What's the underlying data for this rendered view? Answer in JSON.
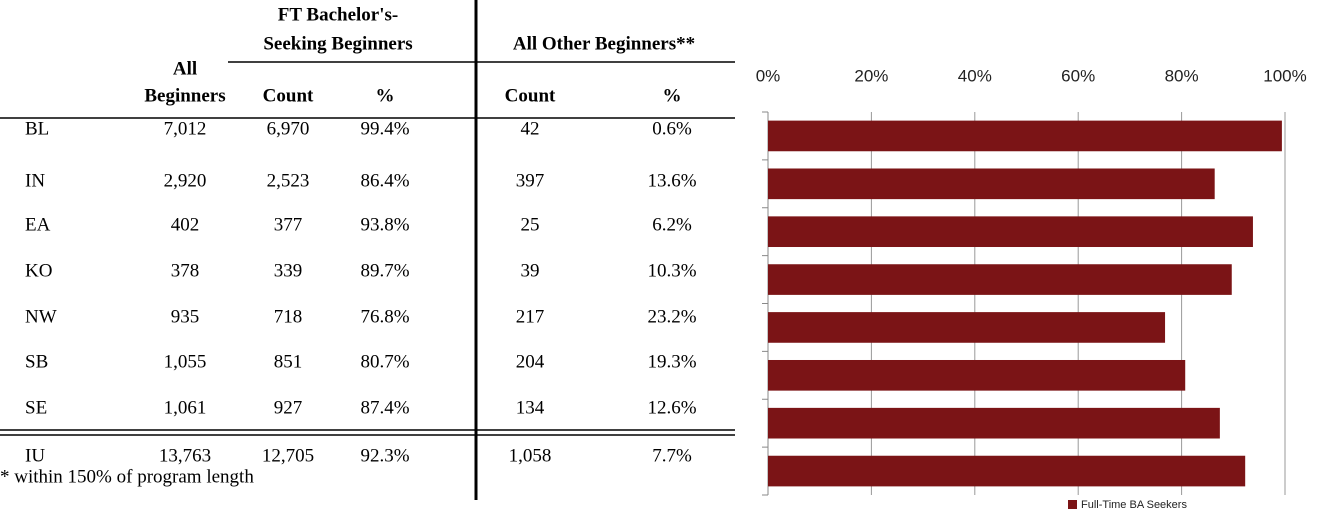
{
  "table": {
    "headers": {
      "all": [
        "All",
        "Beginners"
      ],
      "ft": [
        "FT Bachelor's-",
        "Seeking Beginners"
      ],
      "other": "All Other Beginners**",
      "sub": [
        "Count",
        "%",
        "Count",
        "%"
      ]
    },
    "rows": [
      [
        "BL",
        "7,012",
        "6,970",
        "99.4%",
        "42",
        "0.6%"
      ],
      [
        "IN",
        "2,920",
        "2,523",
        "86.4%",
        "397",
        "13.6%"
      ],
      [
        "EA",
        "402",
        "377",
        "93.8%",
        "25",
        "6.2%"
      ],
      [
        "KO",
        "378",
        "339",
        "89.7%",
        "39",
        "10.3%"
      ],
      [
        "NW",
        "935",
        "718",
        "76.8%",
        "217",
        "23.2%"
      ],
      [
        "SB",
        "1,055",
        "851",
        "80.7%",
        "204",
        "19.3%"
      ],
      [
        "SE",
        "1,061",
        "927",
        "87.4%",
        "134",
        "12.6%"
      ],
      [
        "IU",
        "13,763",
        "12,705",
        "92.3%",
        "1,058",
        "7.7%"
      ]
    ]
  },
  "notes": [
    "* within 150% of program length"
  ],
  "chart_data": {
    "type": "hbar",
    "series": [
      {
        "name": "Full-Time BA Seekers",
        "color": "#7b1416",
        "values": [
          99.4,
          86.4,
          93.8,
          89.7,
          76.8,
          80.7,
          87.4,
          92.3
        ]
      }
    ],
    "xlim": [
      0,
      100
    ],
    "xticks": [
      {
        "value": 0,
        "label": "0%"
      },
      {
        "value": 20,
        "label": "20%"
      },
      {
        "value": 40,
        "label": "40%"
      },
      {
        "value": 60,
        "label": "60%"
      },
      {
        "value": 80,
        "label": "80%"
      },
      {
        "value": 100,
        "label": "100%"
      }
    ],
    "grid": true,
    "legend": "bottom"
  }
}
